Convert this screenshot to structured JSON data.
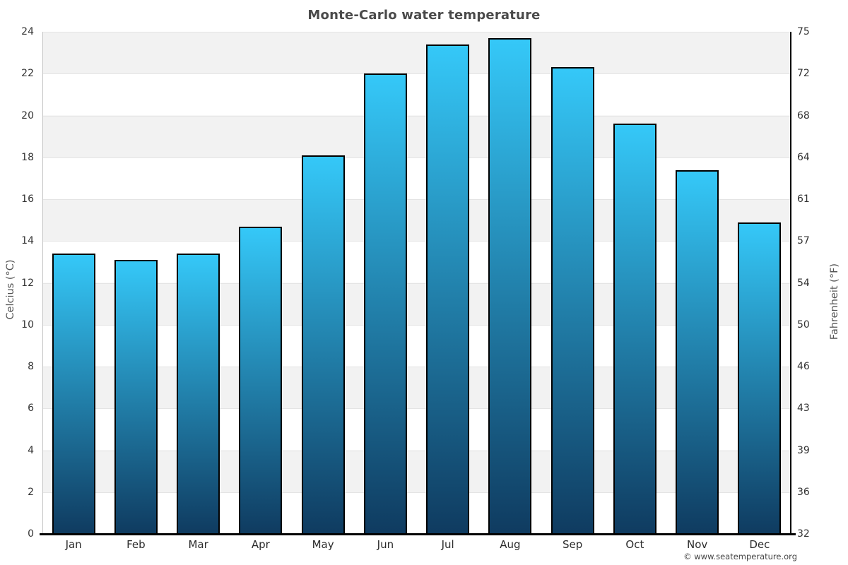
{
  "chart_data": {
    "type": "bar",
    "title": "Monte-Carlo water temperature",
    "categories": [
      "Jan",
      "Feb",
      "Mar",
      "Apr",
      "May",
      "Jun",
      "Jul",
      "Aug",
      "Sep",
      "Oct",
      "Nov",
      "Dec"
    ],
    "values": [
      13.4,
      13.1,
      13.4,
      14.7,
      18.1,
      22.0,
      23.4,
      23.7,
      22.3,
      19.6,
      17.4,
      14.9
    ],
    "ylabel_left": "Celcius (°C)",
    "ylabel_right": "Fahrenheit (°F)",
    "yticks_left": [
      24,
      22,
      20,
      18,
      16,
      14,
      12,
      10,
      8,
      6,
      4,
      2,
      0
    ],
    "yticks_right": [
      75,
      72,
      68,
      64,
      61,
      57,
      54,
      50,
      46,
      43,
      39,
      36,
      32
    ],
    "ylim": [
      0,
      24
    ],
    "xlabel": "",
    "grid": "alternating-horizontal-bands",
    "legend": "none"
  },
  "footer": {
    "copyright": "© www.seatemperature.org"
  },
  "colors": {
    "bar_top": "#35c8f8",
    "bar_bottom": "#0f3b60",
    "bar_border": "#000000",
    "band": "#f2f2f2",
    "gridline": "#e4e4e4",
    "title_text": "#4a4a4a",
    "tick_text": "#333333",
    "axis_title_text": "#555555",
    "left_axis_line": "#c6c6c6",
    "right_axis_line": "#000000",
    "baseline": "#000000",
    "footer_text": "#444444"
  }
}
